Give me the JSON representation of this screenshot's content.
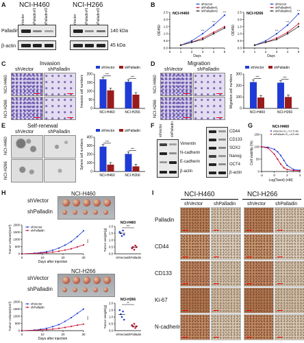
{
  "panelA": {
    "letter": "A",
    "h460": "NCI-H460",
    "h266": "NCI-H266",
    "lanes": [
      "shVector",
      "shPalladin#1",
      "shPalladin#2"
    ],
    "rows": [
      "Palladin",
      "β-actin"
    ],
    "kda": [
      "140 kDa",
      "45 kDa"
    ]
  },
  "panelB": {
    "letter": "B",
    "legend": [
      "shVector",
      "shPalladin#1",
      "shPalladin#2"
    ],
    "title1": "NCI-H460",
    "title2": "NCI-H266",
    "ylabel": "OD450",
    "xlabel": "Days",
    "xticks": [
      "0",
      "1",
      "2",
      "3",
      "4",
      "5"
    ],
    "yticks": [
      "0.0",
      "0.5",
      "1.0",
      "1.5",
      "2.0",
      "2.5"
    ],
    "stars": "***"
  },
  "panelC": {
    "letter": "C",
    "title": "Invasion",
    "cols": [
      "shVector",
      "shPalladin"
    ],
    "rows": [
      "NCI-H460",
      "NCI-H266"
    ],
    "ylabel": "Invasion cell numbers",
    "yticks": [
      "0",
      "50",
      "100",
      "150",
      "200"
    ],
    "cats": [
      "NCI-H460",
      "NCI-H266"
    ],
    "legend": [
      "shVector",
      "shPalladin"
    ],
    "stars": "***"
  },
  "panelD": {
    "letter": "D",
    "title": "Migration",
    "cols": [
      "shVector",
      "shPalladin"
    ],
    "rows": [
      "NCI-H460",
      "NCI-H266"
    ],
    "ylabel": "Migration cell numbers",
    "yticks": [
      "0",
      "100",
      "200",
      "300"
    ],
    "cats": [
      "NCI-H460",
      "NCI-H266"
    ],
    "legend": [
      "shVector",
      "shPalladin"
    ],
    "stars": "***"
  },
  "panelE": {
    "letter": "E",
    "title": "Self-renewal",
    "cols": [
      "shVector",
      "shPalladin"
    ],
    "rows": [
      "NCI-H460",
      "NCI-H266"
    ],
    "ylabel": "Sphere cell numbers",
    "yticks": [
      "0",
      "100",
      "200",
      "300",
      "400"
    ],
    "cats": [
      "NCI-H460",
      "NCI-H266"
    ],
    "legend": [
      "shVector",
      "shPalladin"
    ],
    "stars": "***"
  },
  "panelF": {
    "letter": "F",
    "lanes": [
      "shVector",
      "shPalladin"
    ],
    "left": [
      "Vimentin",
      "N-cadherin",
      "E-cadherin",
      "β-actin"
    ],
    "right": [
      "CD44",
      "CD133",
      "SOX2",
      "Nanog",
      "OCT4",
      "β-actin"
    ]
  },
  "panelG": {
    "letter": "G",
    "title": "NCI-H460",
    "ylabel": "Cell viability (%)",
    "xlabel": "Log(Taxol) (nM)",
    "yticks": [
      "0",
      "50",
      "100",
      "150"
    ],
    "xticks": [
      "-2",
      "0",
      "2",
      "4"
    ],
    "legend": [
      "shVector IC₅₀=17.5 nM",
      "shPalladin IC₅₀=6.5 nM"
    ]
  },
  "panelH": {
    "letter": "H",
    "h460": "NCI-H460",
    "h266": "NCI-H266",
    "rows": [
      "shVector",
      "shPalladin"
    ],
    "tv_ylabel": "Tumor volume(mm³)",
    "tw_ylabel": "Tumor weight(g)",
    "xlabel": "Days after injection",
    "xticks": [
      "0",
      "10",
      "20",
      "30"
    ],
    "tv_yticks": [
      "0",
      "500",
      "1000",
      "1500",
      "2000"
    ],
    "tw_yticks": [
      "0.0",
      "0.5",
      "1.0",
      "1.5",
      "2.0"
    ],
    "legend": [
      "shVector",
      "shPalladin"
    ],
    "stars1": "***",
    "stars2": "**",
    "cats": [
      "shVector",
      "shPalladin"
    ]
  },
  "panelI": {
    "letter": "I",
    "h460": "NCI-H460",
    "h266": "NCI-H266",
    "cols": [
      "shVector",
      "shPalladin",
      "shVector",
      "shPalladin"
    ],
    "rows": [
      "Palladin",
      "CD44",
      "CD133",
      "Ki-67",
      "N-cadherin"
    ]
  },
  "chart_data": [
    {
      "type": "line",
      "title": "NCI-H460",
      "xlabel": "Days",
      "ylabel": "OD450",
      "x": [
        1,
        2,
        3,
        4,
        5
      ],
      "ylim": [
        0,
        2.5
      ],
      "series": [
        {
          "name": "shVector",
          "values": [
            0.2,
            0.5,
            1.0,
            1.6,
            2.3
          ]
        },
        {
          "name": "shPalladin#1",
          "values": [
            0.2,
            0.4,
            0.7,
            1.1,
            1.5
          ]
        },
        {
          "name": "shPalladin#2",
          "values": [
            0.2,
            0.4,
            0.6,
            1.0,
            1.4
          ]
        }
      ]
    },
    {
      "type": "line",
      "title": "NCI-H266",
      "xlabel": "Days",
      "ylabel": "OD450",
      "x": [
        1,
        2,
        3,
        4,
        5
      ],
      "ylim": [
        0,
        2.5
      ],
      "series": [
        {
          "name": "shVector",
          "values": [
            0.2,
            0.5,
            1.0,
            1.6,
            2.4
          ]
        },
        {
          "name": "shPalladin#1",
          "values": [
            0.2,
            0.4,
            0.7,
            1.1,
            1.7
          ]
        },
        {
          "name": "shPalladin#2",
          "values": [
            0.2,
            0.4,
            0.6,
            1.0,
            1.5
          ]
        }
      ]
    },
    {
      "type": "bar",
      "ylabel": "Invasion cell numbers",
      "categories": [
        "NCI-H460",
        "NCI-H266"
      ],
      "ylim": [
        0,
        200
      ],
      "series": [
        {
          "name": "shVector",
          "values": [
            170,
            155
          ]
        },
        {
          "name": "shPalladin",
          "values": [
            105,
            80
          ]
        }
      ]
    },
    {
      "type": "bar",
      "ylabel": "Migration cell numbers",
      "categories": [
        "NCI-H460",
        "NCI-H266"
      ],
      "ylim": [
        0,
        300
      ],
      "series": [
        {
          "name": "shVector",
          "values": [
            230,
            225
          ]
        },
        {
          "name": "shPalladin",
          "values": [
            95,
            100
          ]
        }
      ]
    },
    {
      "type": "bar",
      "ylabel": "Sphere cell numbers",
      "categories": [
        "NCI-H460",
        "NCI-H266"
      ],
      "ylim": [
        0,
        400
      ],
      "series": [
        {
          "name": "shVector",
          "values": [
            290,
            205
          ]
        },
        {
          "name": "shPalladin",
          "values": [
            80,
            60
          ]
        }
      ]
    },
    {
      "type": "line",
      "title": "NCI-H460",
      "xlabel": "Log(Taxol) (nM)",
      "ylabel": "Cell viability (%)",
      "ylim": [
        0,
        150
      ],
      "x": [
        -2,
        -1,
        0,
        0.5,
        1,
        1.5,
        2,
        3,
        4
      ],
      "series": [
        {
          "name": "shVector",
          "values": [
            100,
            98,
            90,
            80,
            65,
            45,
            25,
            8,
            5
          ]
        },
        {
          "name": "shPalladin",
          "values": [
            100,
            95,
            70,
            50,
            30,
            15,
            8,
            4,
            3
          ]
        }
      ]
    },
    {
      "type": "line",
      "title": "NCI-H460",
      "xlabel": "Days after injection",
      "ylabel": "Tumor volume(mm³)",
      "x": [
        0,
        6,
        9,
        12,
        15,
        18,
        21,
        24,
        27,
        30
      ],
      "ylim": [
        0,
        2000
      ],
      "series": [
        {
          "name": "shVector",
          "values": [
            0,
            40,
            80,
            150,
            250,
            400,
            600,
            850,
            1200,
            1600
          ]
        },
        {
          "name": "shPalladin",
          "values": [
            0,
            30,
            50,
            80,
            120,
            180,
            260,
            350,
            480,
            620
          ]
        }
      ]
    },
    {
      "type": "scatter",
      "xlabel": "",
      "ylabel": "Tumor weight(g)",
      "categories": [
        "shVector",
        "shPalladin"
      ],
      "ylim": [
        0,
        2.0
      ],
      "series": [
        {
          "name": "shVector",
          "values": [
            1.6,
            1.5,
            1.3,
            1.7,
            1.4
          ]
        },
        {
          "name": "shPalladin",
          "values": [
            0.4,
            0.5,
            0.3,
            0.6,
            0.5
          ]
        }
      ]
    },
    {
      "type": "line",
      "title": "NCI-H266",
      "xlabel": "Days after injection",
      "ylabel": "Tumor volume(mm³)",
      "x": [
        0,
        6,
        9,
        12,
        15,
        18,
        21,
        24,
        27,
        30
      ],
      "ylim": [
        0,
        2000
      ],
      "series": [
        {
          "name": "shVector",
          "values": [
            0,
            40,
            90,
            160,
            280,
            420,
            640,
            900,
            1200,
            1500
          ]
        },
        {
          "name": "shPalladin",
          "values": [
            0,
            30,
            50,
            70,
            110,
            160,
            220,
            300,
            380,
            450
          ]
        }
      ]
    },
    {
      "type": "scatter",
      "xlabel": "",
      "ylabel": "Tumor weight(g)",
      "categories": [
        "shVector",
        "shPalladin"
      ],
      "ylim": [
        0,
        2.0
      ],
      "series": [
        {
          "name": "shVector",
          "values": [
            1.5,
            1.2,
            1.0,
            1.4,
            0.8
          ]
        },
        {
          "name": "shPalladin",
          "values": [
            0.4,
            0.3,
            0.5,
            0.2,
            0.3
          ]
        }
      ]
    }
  ]
}
